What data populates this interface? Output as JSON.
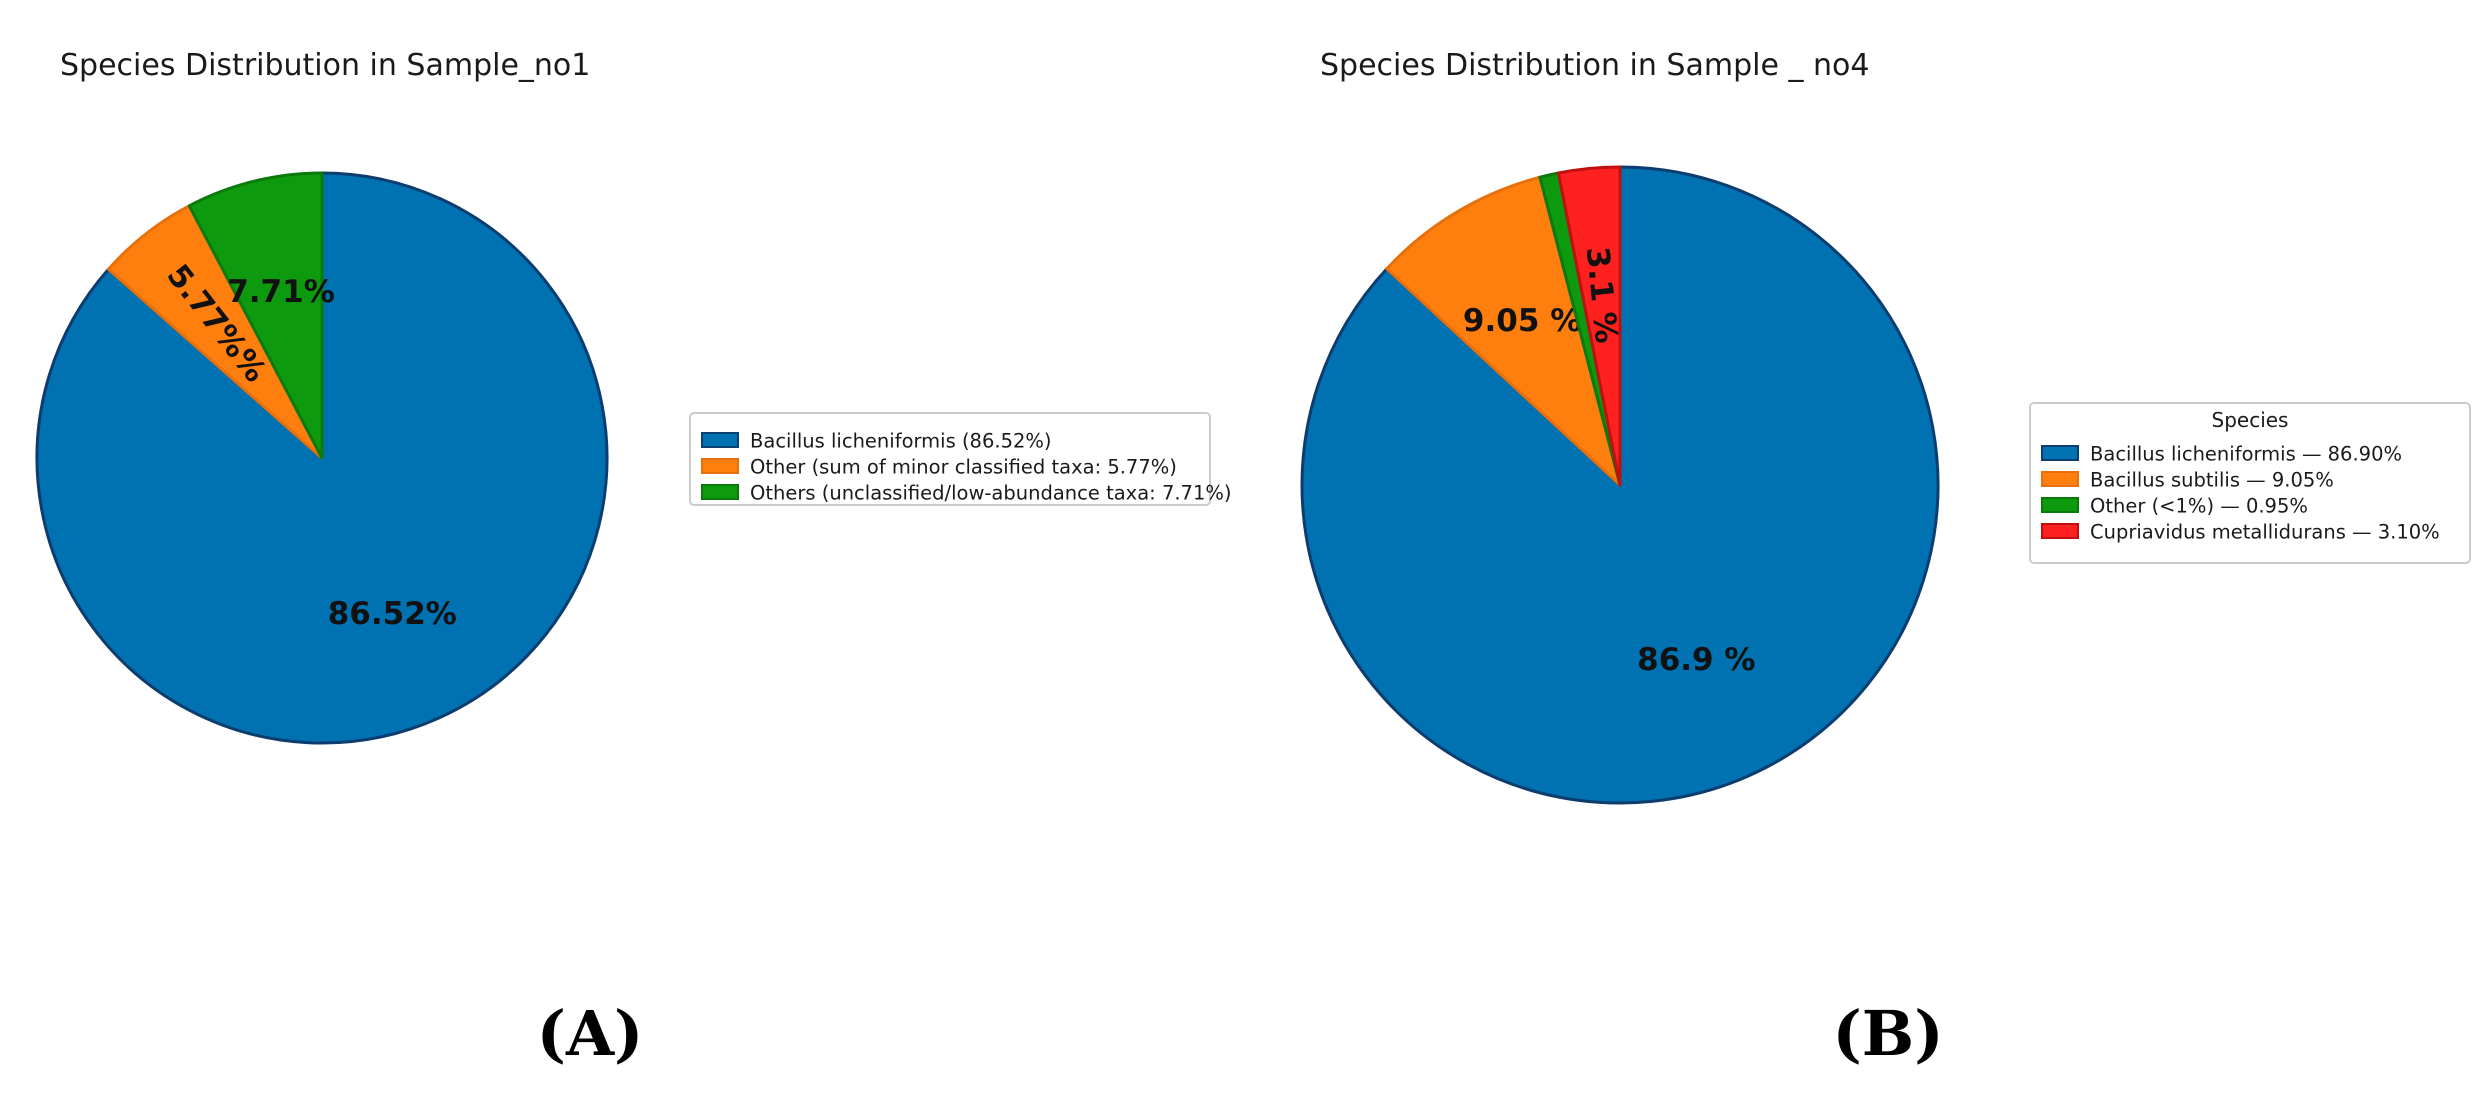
{
  "chart_data": [
    {
      "type": "pie",
      "title": "Species Distribution in Sample_no1",
      "panel_label": "(A)",
      "start_angle_deg": 90,
      "direction": "clockwise",
      "legend_title": "",
      "legend_position": "right",
      "slices": [
        {
          "name": "Bacillus licheniformis",
          "value": 86.52,
          "color": "#0072B2",
          "edge": "#0C3D6E",
          "label": "86.52%",
          "legend": "Bacillus licheniformis (86.52%)"
        },
        {
          "name": "Other (sum of minor classified taxa)",
          "value": 5.77,
          "color": "#FF7F0E",
          "edge": "#E8700A",
          "label": "5.77%%",
          "legend": "Other (sum of minor classified taxa: 5.77%)"
        },
        {
          "name": "Others (unclassified/low-abundance taxa)",
          "value": 7.71,
          "color": "#0E9A0E",
          "edge": "#0A7A0A",
          "label": "7.71%",
          "legend": "Others (unclassified/low-abundance taxa: 7.71%)"
        }
      ]
    },
    {
      "type": "pie",
      "title": "Species Distribution in Sample _ no4",
      "panel_label": "(B)",
      "start_angle_deg": 90,
      "direction": "clockwise",
      "legend_title": "Species",
      "legend_position": "right",
      "slices": [
        {
          "name": "Bacillus licheniformis",
          "value": 86.9,
          "color": "#0072B2",
          "edge": "#0C3D6E",
          "label": "86.9 %",
          "legend": "Bacillus licheniformis — 86.90%"
        },
        {
          "name": "Bacillus subtilis",
          "value": 9.05,
          "color": "#FF7F0E",
          "edge": "#E8700A",
          "label": "9.05 %",
          "legend": "Bacillus subtilis — 9.05%"
        },
        {
          "name": "Other (<1%)",
          "value": 0.95,
          "color": "#0E9A0E",
          "edge": "#0A7A0A",
          "label": "",
          "legend": "Other (<1%) — 0.95%"
        },
        {
          "name": "Cupriavidus metallidurans",
          "value": 3.1,
          "color": "#FF2020",
          "edge": "#C01010",
          "label": "3.1 %",
          "legend": "Cupriavidus metallidurans — 3.10%"
        }
      ]
    }
  ]
}
